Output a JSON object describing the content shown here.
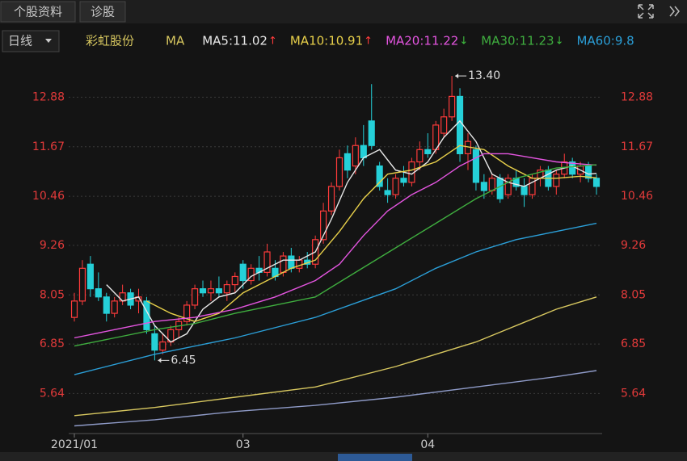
{
  "tabs": [
    "个股资料",
    "诊股"
  ],
  "chart_data": {
    "type": "candlestick",
    "period": "日线",
    "stock": "彩虹股份",
    "indicator": "MA",
    "categories": [
      "2021/01",
      null,
      null,
      null,
      null,
      null,
      null,
      null,
      null,
      null,
      null,
      null,
      null,
      null,
      null,
      null,
      null,
      null,
      null,
      null,
      null,
      "03",
      null,
      null,
      null,
      null,
      null,
      null,
      null,
      null,
      null,
      null,
      null,
      null,
      null,
      null,
      null,
      null,
      null,
      null,
      null,
      null,
      null,
      null,
      "04",
      null,
      null,
      null,
      null,
      null,
      null,
      null,
      null,
      null,
      null,
      null,
      null,
      null,
      null,
      null,
      null,
      null,
      null,
      null,
      null,
      null
    ],
    "open": [
      7.5,
      7.9,
      8.8,
      8.2,
      8.0,
      7.6,
      7.9,
      8.1,
      7.9,
      7.9,
      7.1,
      6.7,
      6.9,
      7.2,
      7.4,
      7.8,
      8.2,
      8.1,
      8.2,
      8.1,
      8.3,
      8.8,
      8.4,
      8.7,
      8.6,
      8.7,
      8.6,
      9.0,
      8.7,
      8.9,
      8.8,
      9.4,
      10.1,
      10.7,
      11.5,
      11.2,
      11.7,
      12.3,
      11.2,
      10.6,
      10.5,
      10.9,
      10.8,
      11.3,
      11.6,
      11.6,
      12.0,
      12.4,
      12.9,
      11.5,
      11.6,
      10.8,
      10.6,
      10.9,
      10.5,
      10.9,
      10.7,
      10.5,
      10.9,
      11.1,
      10.7,
      11.0,
      11.3,
      11.0,
      11.2,
      10.9
    ],
    "high": [
      8.1,
      8.9,
      9.0,
      8.6,
      8.1,
      8.0,
      8.3,
      8.2,
      8.2,
      8.0,
      7.3,
      7.1,
      7.3,
      7.5,
      7.9,
      8.3,
      8.4,
      8.4,
      8.5,
      8.4,
      8.6,
      8.9,
      8.8,
      9.0,
      9.3,
      8.9,
      9.1,
      9.2,
      9.0,
      9.1,
      9.5,
      10.3,
      10.8,
      11.6,
      11.7,
      11.9,
      12.2,
      13.2,
      11.3,
      10.9,
      11.0,
      11.2,
      11.4,
      11.8,
      12.0,
      12.3,
      12.6,
      13.4,
      13.1,
      12.0,
      11.7,
      11.0,
      11.0,
      11.0,
      11.0,
      11.1,
      10.9,
      11.0,
      11.2,
      11.2,
      11.1,
      11.5,
      11.4,
      11.3,
      11.3,
      11.0
    ],
    "low": [
      7.4,
      7.8,
      8.0,
      7.9,
      7.4,
      7.5,
      7.8,
      7.7,
      7.6,
      7.1,
      6.45,
      6.6,
      6.8,
      7.0,
      7.3,
      7.7,
      8.0,
      7.9,
      8.0,
      7.9,
      8.1,
      8.2,
      8.3,
      8.4,
      8.5,
      8.4,
      8.5,
      8.6,
      8.6,
      8.7,
      8.7,
      9.3,
      10.0,
      10.6,
      10.9,
      11.0,
      11.2,
      11.6,
      10.6,
      10.3,
      10.4,
      10.7,
      10.7,
      11.1,
      11.4,
      11.5,
      11.9,
      12.3,
      11.3,
      11.1,
      10.6,
      10.4,
      10.5,
      10.3,
      10.4,
      10.6,
      10.2,
      10.4,
      10.7,
      10.6,
      10.5,
      10.9,
      10.9,
      10.8,
      10.8,
      10.5
    ],
    "close": [
      7.9,
      8.7,
      8.2,
      8.0,
      7.6,
      7.9,
      8.1,
      7.8,
      8.0,
      7.2,
      6.7,
      6.9,
      7.2,
      7.4,
      7.8,
      8.2,
      8.1,
      8.2,
      8.1,
      8.3,
      8.5,
      8.4,
      8.7,
      8.6,
      9.1,
      8.5,
      9.0,
      8.7,
      8.9,
      8.8,
      9.4,
      10.1,
      10.7,
      11.4,
      11.1,
      11.7,
      11.4,
      11.7,
      10.7,
      10.5,
      10.9,
      10.8,
      11.3,
      11.6,
      11.5,
      12.2,
      12.4,
      12.9,
      11.5,
      11.8,
      10.8,
      10.6,
      10.9,
      10.4,
      10.9,
      10.7,
      10.5,
      10.9,
      11.1,
      10.7,
      11.0,
      11.3,
      11.0,
      11.2,
      10.9,
      10.7
    ],
    "up_color": "#ff3b3b",
    "down_color": "#25d0d8",
    "series": [
      {
        "name": "MA5:11.02",
        "trend": "↑",
        "color": "#e8e8e8",
        "x": [
          4,
          6,
          8,
          10,
          12,
          14,
          16,
          18,
          20,
          22,
          24,
          26,
          28,
          30,
          32,
          34,
          36,
          38,
          40,
          42,
          44,
          46,
          48,
          50,
          52,
          54,
          56,
          58,
          60,
          62,
          64,
          65
        ],
        "values": [
          8.3,
          7.9,
          8.0,
          7.3,
          6.9,
          7.1,
          7.7,
          8.0,
          8.1,
          8.5,
          8.7,
          8.9,
          8.9,
          9.1,
          9.9,
          10.8,
          11.4,
          11.6,
          11.1,
          11.0,
          11.3,
          11.9,
          12.3,
          11.8,
          11.0,
          10.8,
          10.7,
          10.9,
          11.1,
          11.2,
          11.0,
          11.02
        ]
      },
      {
        "name": "MA10:10.91",
        "trend": "↑",
        "color": "#e8d04a",
        "x": [
          9,
          12,
          15,
          18,
          21,
          24,
          27,
          30,
          33,
          36,
          39,
          42,
          45,
          48,
          51,
          54,
          57,
          60,
          63,
          65
        ],
        "values": [
          7.9,
          7.6,
          7.4,
          7.6,
          8.1,
          8.4,
          8.7,
          8.9,
          9.6,
          10.4,
          11.0,
          11.1,
          11.3,
          11.7,
          11.6,
          11.2,
          10.9,
          10.9,
          10.95,
          10.91
        ]
      },
      {
        "name": "MA20:11.22",
        "trend": "↓",
        "color": "#e455e0",
        "x": [
          0,
          5,
          10,
          15,
          20,
          25,
          30,
          33,
          36,
          39,
          42,
          45,
          48,
          51,
          54,
          57,
          60,
          63,
          65
        ],
        "values": [
          7.0,
          7.2,
          7.4,
          7.5,
          7.7,
          8.0,
          8.4,
          8.8,
          9.5,
          10.1,
          10.5,
          10.8,
          11.2,
          11.5,
          11.5,
          11.4,
          11.3,
          11.25,
          11.22
        ]
      },
      {
        "name": "MA30:11.23",
        "trend": "↓",
        "color": "#3fae3f",
        "x": [
          0,
          5,
          10,
          15,
          20,
          25,
          30,
          35,
          40,
          45,
          50,
          55,
          60,
          65
        ],
        "values": [
          6.8,
          7.0,
          7.2,
          7.35,
          7.6,
          7.8,
          8.0,
          8.6,
          9.2,
          9.8,
          10.4,
          10.9,
          11.15,
          11.23
        ]
      },
      {
        "name": "MA60:9.8",
        "color": "#2b9fd8",
        "x": [
          0,
          10,
          20,
          30,
          40,
          45,
          50,
          55,
          60,
          65
        ],
        "values": [
          6.1,
          6.6,
          7.0,
          7.5,
          8.2,
          8.7,
          9.1,
          9.4,
          9.6,
          9.8
        ]
      },
      {
        "color": "#d8c860",
        "x": [
          0,
          10,
          20,
          30,
          40,
          50,
          55,
          60,
          65
        ],
        "values": [
          5.1,
          5.3,
          5.55,
          5.8,
          6.3,
          6.9,
          7.3,
          7.7,
          8.0
        ]
      },
      {
        "color": "#8f9bc8",
        "x": [
          0,
          10,
          20,
          30,
          40,
          50,
          60,
          65
        ],
        "values": [
          4.85,
          5.0,
          5.2,
          5.35,
          5.55,
          5.8,
          6.05,
          6.2
        ]
      }
    ],
    "annotations": [
      {
        "index": 47,
        "value": 13.4,
        "label": "13.40"
      },
      {
        "index": 10,
        "value": 6.45,
        "label": "6.45"
      }
    ],
    "ylim": [
      4.8,
      13.5
    ],
    "yticks": [
      12.88,
      11.67,
      10.46,
      9.26,
      8.05,
      6.85,
      5.64
    ],
    "grid": true
  }
}
